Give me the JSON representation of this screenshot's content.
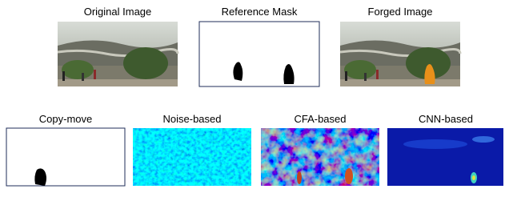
{
  "figure": {
    "labels": [
      "Original Image",
      "Reference Mask",
      "Forged Image",
      "Copy-move",
      "Noise-based",
      "CFA-based",
      "CNN-based"
    ]
  }
}
